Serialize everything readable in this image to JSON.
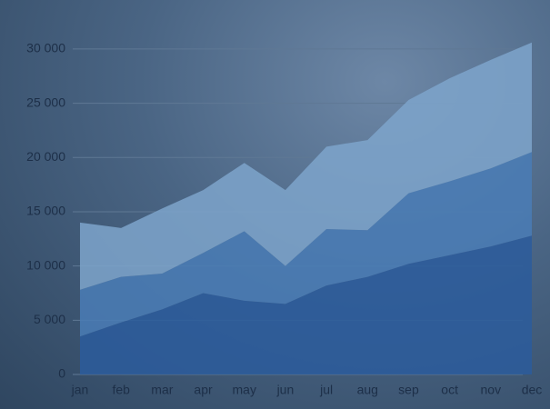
{
  "chart_data": {
    "type": "stacked-area",
    "categories": [
      "jan",
      "feb",
      "mar",
      "apr",
      "may",
      "jun",
      "jul",
      "aug",
      "sep",
      "oct",
      "nov",
      "dec"
    ],
    "series": [
      {
        "color": "#2c5c9c",
        "values": [
          3500,
          4800,
          6000,
          7500,
          6800,
          6500,
          8200,
          9000,
          10200,
          11000,
          11800,
          12800
        ]
      },
      {
        "color": "#4a7db6",
        "values": [
          4300,
          4200,
          3300,
          3700,
          6400,
          3500,
          5200,
          4300,
          6500,
          6800,
          7200,
          7700
        ]
      },
      {
        "color": "#7ea4cb",
        "values": [
          6200,
          4500,
          6000,
          5800,
          6300,
          7000,
          7600,
          8300,
          8600,
          9500,
          10000,
          10100
        ]
      }
    ],
    "ylim": [
      0,
      32000
    ],
    "yticks": [
      {
        "value": 0,
        "label": "0"
      },
      {
        "value": 5000,
        "label": "5 000"
      },
      {
        "value": 10000,
        "label": "10 000"
      },
      {
        "value": 15000,
        "label": "15 000"
      },
      {
        "value": 20000,
        "label": "20 000"
      },
      {
        "value": 25000,
        "label": "25 000"
      },
      {
        "value": 30000,
        "label": "30 000"
      }
    ],
    "grid": true
  }
}
